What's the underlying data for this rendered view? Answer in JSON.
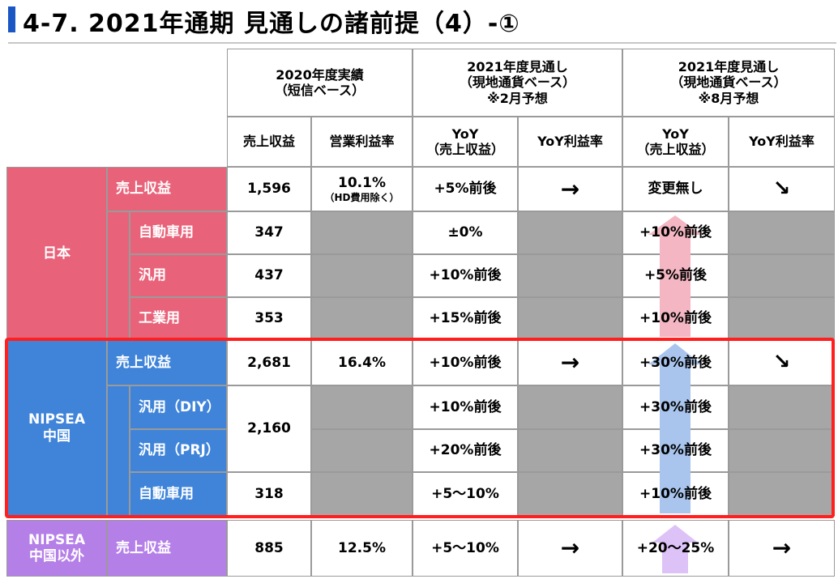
{
  "title": "4-7. 2021年通期 見通しの諸前提（4）-①",
  "headers": {
    "group1_line1": "2020年度実績",
    "group1_line2": "（短信ベース）",
    "group2_line1": "2021年度見通し",
    "group2_line2": "（現地通貨ベース）",
    "group2_line3": "※2月予想",
    "group3_line1": "2021年度見通し",
    "group3_line2": "（現地通貨ベース）",
    "group3_line3": "※8月予想",
    "col_revenue": "売上収益",
    "col_op_margin": "営業利益率",
    "col_yoy_line1": "YoY",
    "col_yoy_line2": "（売上収益）",
    "col_yoy_margin": "YoY利益率",
    "col_yoy2_line1": "YoY",
    "col_yoy2_line2": "（売上収益）",
    "col_yoy2_margin": "YoY利益率"
  },
  "regions": {
    "japan": "日本",
    "nipsea_line1": "NIPSEA",
    "nipsea_line2": "中国",
    "other_line1": "NIPSEA",
    "other_line2": "中国以外"
  },
  "rows": {
    "jp_total": {
      "label": "売上収益",
      "revenue": "1,596",
      "margin": "10.1%",
      "margin_note": "（HD費用除く）",
      "yoy_feb": "+5%前後",
      "margin_feb": "→",
      "yoy_aug": "変更無し",
      "margin_aug": "↘"
    },
    "jp_auto": {
      "label": "自動車用",
      "revenue": "347",
      "yoy_feb": "±0%",
      "yoy_aug": "+10%前後"
    },
    "jp_general": {
      "label": "汎用",
      "revenue": "437",
      "yoy_feb": "+10%前後",
      "yoy_aug": "+5%前後"
    },
    "jp_industrial": {
      "label": "工業用",
      "revenue": "353",
      "yoy_feb": "+15%前後",
      "yoy_aug": "+10%前後"
    },
    "cn_total": {
      "label": "売上収益",
      "revenue": "2,681",
      "margin": "16.4%",
      "yoy_feb": "+10%前後",
      "margin_feb": "→",
      "yoy_aug": "+30%前後",
      "margin_aug": "↘"
    },
    "cn_diy": {
      "label": "汎用（DIY）",
      "yoy_feb": "+10%前後",
      "yoy_aug": "+30%前後"
    },
    "cn_prj": {
      "label": "汎用（PRJ）",
      "yoy_feb": "+20%前後",
      "yoy_aug": "+30%前後"
    },
    "cn_general_revenue": "2,160",
    "cn_auto": {
      "label": "自動車用",
      "revenue": "318",
      "yoy_feb": "+5～10%",
      "yoy_aug": "+10%前後"
    },
    "ot_total": {
      "label": "売上収益",
      "revenue": "885",
      "margin": "12.5%",
      "yoy_feb": "+5～10%",
      "margin_feb": "→",
      "yoy_aug": "+20～25%",
      "margin_aug": "→"
    }
  },
  "colors": {
    "japan": "#e8637a",
    "china": "#3f84d9",
    "other": "#b57fe8",
    "highlight_frame": "#ff1f1f",
    "arrow_pink": "#f4b6c2",
    "arrow_blue": "#a9c5ee",
    "arrow_purple": "#dcc2f7"
  }
}
